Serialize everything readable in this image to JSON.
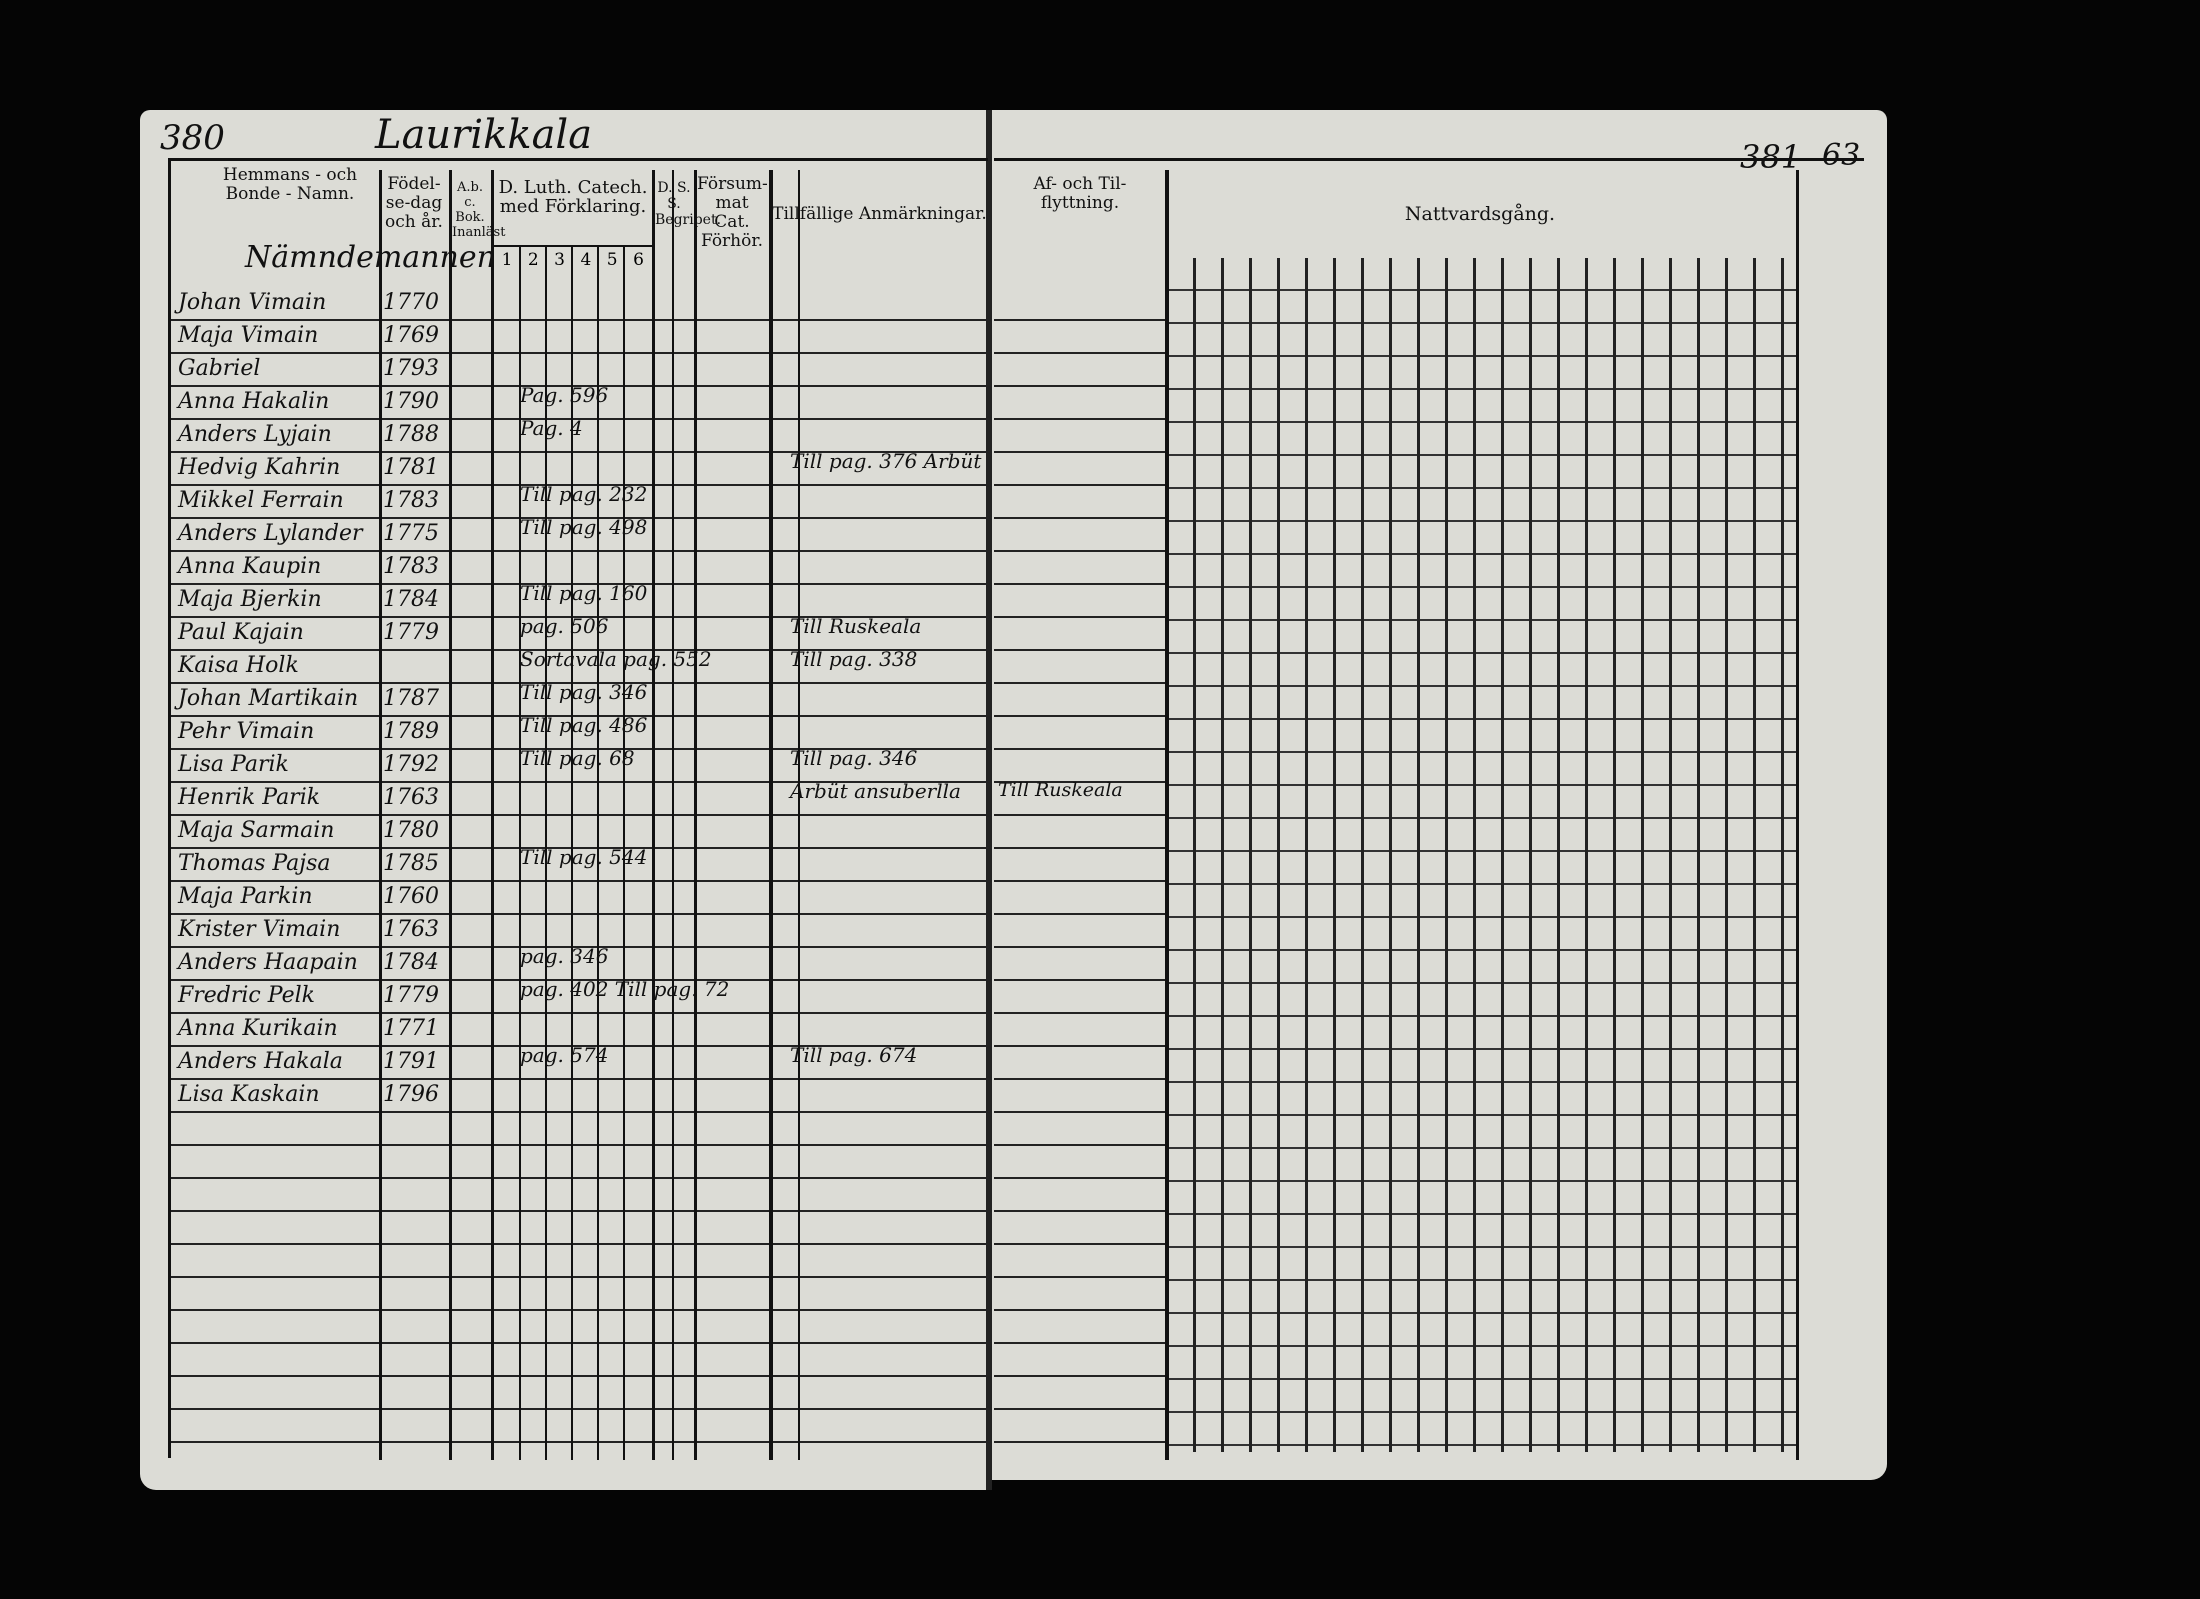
{
  "header": {
    "page_left": "380",
    "page_right": "381",
    "folio": "63",
    "village": "Laurikkala",
    "section": "Nämndemannen"
  },
  "columns": {
    "name": "Hemmans - och Bonde - Namn.",
    "born": "Födel-se-dag och år.",
    "abc": "A.b. c. Bok. Inanläst",
    "catechism": "D. Luth. Catech. med Förklaring.",
    "catechism_parts": [
      "1",
      "2",
      "3",
      "4",
      "5",
      "6"
    ],
    "dss": "D. S. S. Begripet.",
    "missed": "Försum-mat Cat. Förhör.",
    "remarks": "Tillfällige Anmärkningar.",
    "moving": "Af- och Til-flyttning.",
    "communion": "Nattvardsgång."
  },
  "rows": [
    {
      "name": "Johan Vimain",
      "year": "1770"
    },
    {
      "name": "Maja Vimain",
      "year": "1769"
    },
    {
      "name": "Gabriel",
      "year": "1793"
    },
    {
      "name": "Anna Hakalin",
      "year": "1790",
      "catechism": "Pag. 596"
    },
    {
      "name": "Anders Lyjain",
      "year": "1788",
      "catechism": "Pag. 4"
    },
    {
      "name": "Hedvig Kahrin",
      "year": "1781",
      "remark": "Till pag. 376 Arbüt"
    },
    {
      "name": "Mikkel Ferrain",
      "year": "1783",
      "catechism": "Till pag. 232"
    },
    {
      "name": "Anders Lylander",
      "year": "1775",
      "catechism": "Till pag. 498"
    },
    {
      "name": "Anna Kaupin",
      "year": "1783"
    },
    {
      "name": "Maja Bjerkin",
      "year": "1784",
      "catechism": "Till pag. 160"
    },
    {
      "name": "Paul Kajain",
      "year": "1779",
      "catechism": "pag. 506",
      "remark": "Till Ruskeala"
    },
    {
      "name": "Kaisa Holk",
      "catechism": "Sortavala pag. 552",
      "remark": "Till pag. 338"
    },
    {
      "name": "Johan Martikain",
      "year": "1787",
      "catechism": "Till pag. 346"
    },
    {
      "name": "Pehr Vimain",
      "year": "1789",
      "catechism": "Till pag. 486"
    },
    {
      "name": "Lisa Parik",
      "year": "1792",
      "catechism": "Till pag. 68",
      "remark": "Till pag. 346"
    },
    {
      "name": "Henrik Parik",
      "year": "1763",
      "remark": "Arbüt ansuberlla",
      "moving": "Till Ruskeala"
    },
    {
      "name": "Maja Sarmain",
      "year": "1780"
    },
    {
      "name": "Thomas Pajsa",
      "year": "1785",
      "catechism": "Till pag. 544"
    },
    {
      "name": "Maja Parkin",
      "year": "1760"
    },
    {
      "name": "Krister Vimain",
      "year": "1763"
    },
    {
      "name": "Anders Haapain",
      "year": "1784",
      "catechism": "pag. 346"
    },
    {
      "name": "Fredric Pelk",
      "year": "1779",
      "catechism": "pag. 402 Till pag. 72"
    },
    {
      "name": "Anna Kurikain",
      "year": "1771"
    },
    {
      "name": "Anders Hakala",
      "year": "1791",
      "catechism": "pag. 574",
      "remark": "Till pag. 674"
    },
    {
      "name": "Lisa Kaskain",
      "year": "1796"
    }
  ]
}
